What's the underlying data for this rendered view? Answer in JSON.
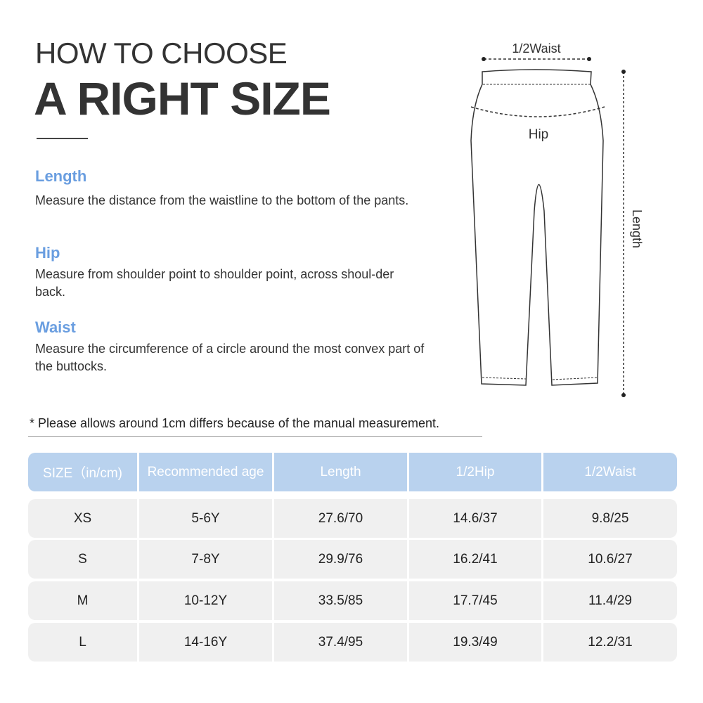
{
  "title": {
    "line1": "HOW TO CHOOSE",
    "line2": "A RIGHT SIZE"
  },
  "sections": [
    {
      "heading": "Length",
      "text": "Measure the distance from the waistline to the bottom of the pants."
    },
    {
      "heading": "Hip",
      "text": "Measure from shoulder point to shoulder point, across shoul-der back."
    },
    {
      "heading": "Waist",
      "text": "Measure the circumference of a circle around the most convex part of the buttocks."
    }
  ],
  "diagram": {
    "waist_label": "1/2Waist",
    "hip_label": "Hip",
    "length_label": "Length"
  },
  "note": "* Please allows around 1cm differs because of the manual measurement.",
  "table": {
    "headers": [
      "SIZE（in/cm)",
      "Recommended age",
      "Length",
      "1/2Hip",
      "1/2Waist"
    ],
    "rows": [
      [
        "XS",
        "5-6Y",
        "27.6/70",
        "14.6/37",
        "9.8/25"
      ],
      [
        "S",
        "7-8Y",
        "29.9/76",
        "16.2/41",
        "10.6/27"
      ],
      [
        "M",
        "10-12Y",
        "33.5/85",
        "17.7/45",
        "11.4/29"
      ],
      [
        "L",
        "14-16Y",
        "37.4/95",
        "19.3/49",
        "12.2/31"
      ]
    ]
  },
  "colors": {
    "accent": "#6a9ee0",
    "header_bg": "#b9d2ee",
    "row_bg": "#f0f0f0"
  }
}
